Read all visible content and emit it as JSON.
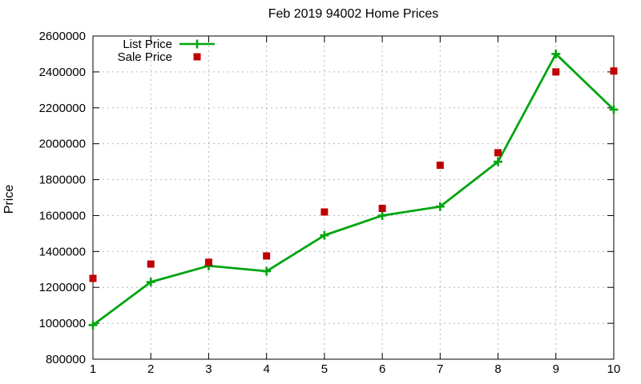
{
  "page": {
    "background": "#ffffff"
  },
  "chart_data": {
    "type": "line",
    "title": "Feb 2019 94002 Home Prices",
    "xlabel": "",
    "ylabel": "Price",
    "x": [
      1,
      2,
      3,
      4,
      5,
      6,
      7,
      8,
      9,
      10
    ],
    "series": [
      {
        "name": "List Price",
        "color": "#00a510",
        "line": true,
        "marker": "plus",
        "values": [
          990000,
          1230000,
          1320000,
          1290000,
          1490000,
          1600000,
          1650000,
          1900000,
          2500000,
          2190000
        ]
      },
      {
        "name": "Sale Price",
        "color": "#c00000",
        "line": false,
        "marker": "square",
        "values": [
          1250000,
          1330000,
          1340000,
          1375000,
          1620000,
          1640000,
          1880000,
          1950000,
          2400000,
          2405000
        ]
      }
    ],
    "xlim": [
      1,
      10
    ],
    "ylim": [
      800000,
      2600000
    ],
    "xticks": [
      1,
      2,
      3,
      4,
      5,
      6,
      7,
      8,
      9,
      10
    ],
    "yticks": [
      800000,
      1000000,
      1200000,
      1400000,
      1600000,
      1800000,
      2000000,
      2200000,
      2400000,
      2600000
    ],
    "grid": "dashed",
    "grid_color": "#b8b8b8",
    "axis_color": "#000000",
    "legend_position": "top-left-inside"
  }
}
